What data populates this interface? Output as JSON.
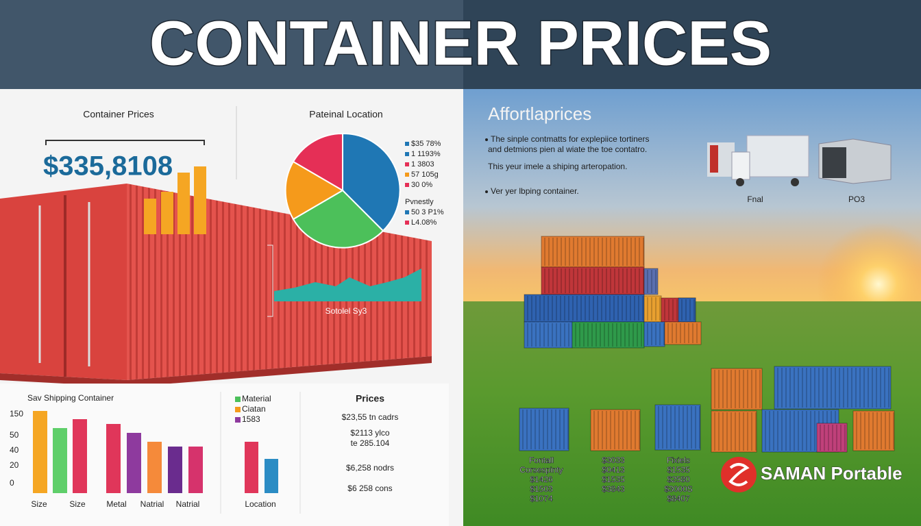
{
  "header": {
    "title": "CONTAINER PRICES"
  },
  "left": {
    "price_panel": {
      "heading": "Container Prices",
      "price": "$335,8108"
    },
    "location_panel": {
      "heading": "Pateinal Location",
      "legend": [
        "$35 78%",
        "1 1193%",
        "1 3803",
        "57 105g",
        "30 0%",
        "Pvnestly",
        "50 3 P1%",
        "L4.08%"
      ]
    },
    "container_label": "Sotolel Sy3",
    "bar_panel": {
      "heading": "Sav Shipping Container",
      "y_labels": [
        "150",
        "50",
        "40",
        "20",
        "0"
      ],
      "x_labels": [
        "Size",
        "Size",
        "Metal",
        "Natrial",
        "Natrial"
      ]
    },
    "material_panel": {
      "legend": [
        "Material",
        "Ciatan",
        "1583"
      ],
      "x_label": "Location"
    },
    "prices_panel": {
      "heading": "Prices",
      "lines": [
        "$23,55 tn cadrs",
        "$2113 ylco",
        "te 285.104",
        "$6,258 nodrs",
        "$6 258 cons"
      ]
    }
  },
  "right": {
    "heading": "Affortlaprices",
    "bullets": [
      "The sinple contmatts for explepiice tortiners",
      "and detmions pien al wiate the toe contatro.",
      "This yeur imele a shiping arteropation.",
      "Ver yer lbping container."
    ],
    "vehicle_labels": [
      "Fnal",
      "PO3"
    ],
    "price_columns": [
      [
        "Fontall",
        "Corsespinty",
        "$1426",
        "$1503",
        "$1074"
      ],
      [
        "$3033",
        "$0413",
        "$1535",
        "$3843"
      ],
      [
        "Fixiels",
        "$1535",
        "$2580",
        "$3000S",
        "$8407"
      ]
    ],
    "brand": "SAMAN Portable"
  }
}
